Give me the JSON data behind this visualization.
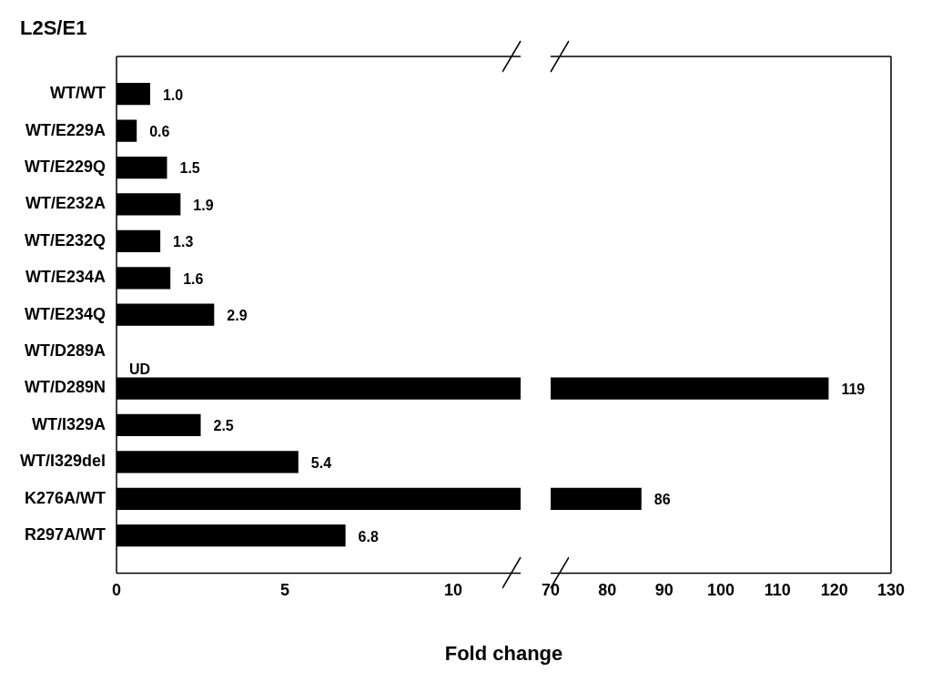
{
  "chart_data": [
    {
      "type": "bar",
      "orientation": "horizontal",
      "title": "L2S/E1",
      "xlabel": "Fold change",
      "categories": [
        "WT/WT",
        "WT/E229A",
        "WT/E229Q",
        "WT/E232A",
        "WT/E232Q",
        "WT/E234A",
        "WT/E234Q",
        "WT/D289A",
        "WT/D289N",
        "WT/I329A",
        "WT/I329del",
        "K276A/WT",
        "R297A/WT"
      ],
      "values": [
        1.0,
        0.6,
        1.5,
        1.9,
        1.3,
        1.6,
        2.9,
        null,
        12,
        2.5,
        5.4,
        12,
        6.8
      ],
      "value_labels": [
        "1.0",
        "0.6",
        "1.5",
        "1.9",
        "1.3",
        "1.6",
        "2.9",
        "UD",
        null,
        "2.5",
        "5.4",
        null,
        "6.8"
      ],
      "color": "#000000",
      "xlim": [
        0,
        12
      ],
      "xticks": [
        0,
        5,
        10
      ],
      "grid": false,
      "legend": false
    },
    {
      "type": "bar",
      "orientation": "horizontal",
      "categories": [
        null,
        null,
        null,
        null,
        null,
        null,
        null,
        null,
        null,
        null,
        null,
        null,
        null
      ],
      "values": [
        null,
        null,
        null,
        null,
        null,
        null,
        null,
        null,
        119,
        null,
        null,
        86,
        null
      ],
      "value_labels": [
        null,
        null,
        null,
        null,
        null,
        null,
        null,
        null,
        "119",
        null,
        null,
        "86",
        null
      ],
      "color": "#000000",
      "xlim": [
        70,
        130
      ],
      "xticks": [
        70,
        80,
        90,
        100,
        110,
        120,
        130
      ],
      "tick_labels": "x",
      "grid": false,
      "legend": false
    }
  ]
}
